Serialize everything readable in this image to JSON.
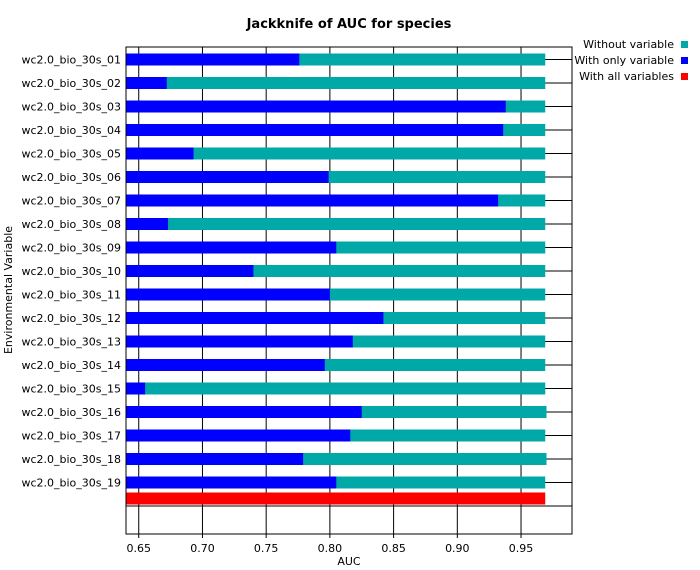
{
  "chart_data": {
    "type": "bar",
    "orientation": "horizontal",
    "title": "Jackknife of AUC for species",
    "xlabel": "AUC",
    "ylabel": "Environmental Variable",
    "xlim": [
      0.64,
      0.99
    ],
    "xticks": [
      "0.65",
      "0.70",
      "0.75",
      "0.80",
      "0.85",
      "0.90",
      "0.95"
    ],
    "grid": "vertical",
    "legend_position": "top-right",
    "categories": [
      "wc2.0_bio_30s_01",
      "wc2.0_bio_30s_02",
      "wc2.0_bio_30s_03",
      "wc2.0_bio_30s_04",
      "wc2.0_bio_30s_05",
      "wc2.0_bio_30s_06",
      "wc2.0_bio_30s_07",
      "wc2.0_bio_30s_08",
      "wc2.0_bio_30s_09",
      "wc2.0_bio_30s_10",
      "wc2.0_bio_30s_11",
      "wc2.0_bio_30s_12",
      "wc2.0_bio_30s_13",
      "wc2.0_bio_30s_14",
      "wc2.0_bio_30s_15",
      "wc2.0_bio_30s_16",
      "wc2.0_bio_30s_17",
      "wc2.0_bio_30s_18",
      "wc2.0_bio_30s_19"
    ],
    "series": [
      {
        "name": "Without variable",
        "color": "#00A8A8",
        "values": [
          0.969,
          0.969,
          0.969,
          0.969,
          0.969,
          0.969,
          0.969,
          0.969,
          0.969,
          0.969,
          0.969,
          0.969,
          0.969,
          0.969,
          0.969,
          0.97,
          0.969,
          0.97,
          0.969
        ]
      },
      {
        "name": "With only variable",
        "color": "#0000FF",
        "values": [
          0.776,
          0.672,
          0.938,
          0.936,
          0.693,
          0.799,
          0.932,
          0.673,
          0.805,
          0.74,
          0.8,
          0.842,
          0.818,
          0.796,
          0.655,
          0.825,
          0.816,
          0.779,
          0.805
        ]
      },
      {
        "name": "With all variables",
        "color": "#FF0000",
        "value": 0.969
      }
    ]
  }
}
